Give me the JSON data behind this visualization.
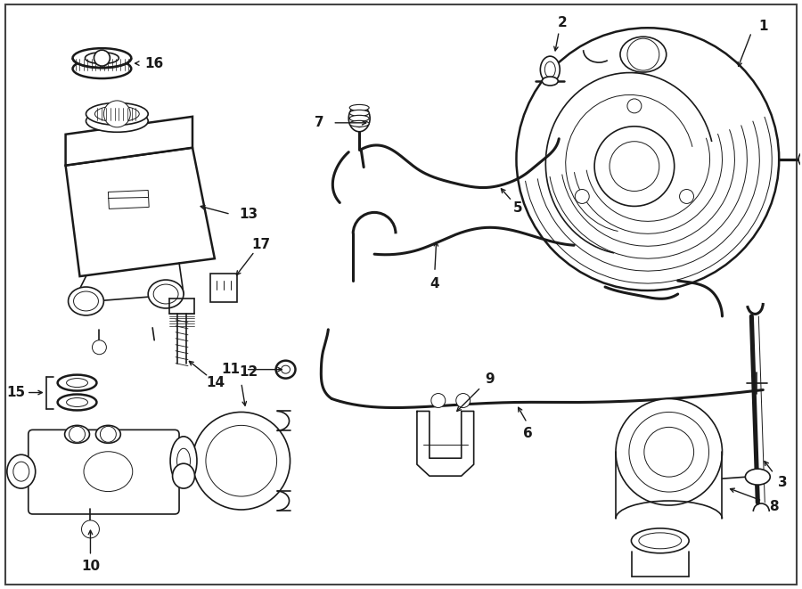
{
  "bg_color": "#ffffff",
  "line_color": "#1a1a1a",
  "fig_width": 9.0,
  "fig_height": 6.61,
  "dpi": 100,
  "lw_heavy": 1.8,
  "lw_med": 1.2,
  "lw_thin": 0.7,
  "lw_hose": 2.2,
  "font_size": 11,
  "font_size_sm": 9.5
}
